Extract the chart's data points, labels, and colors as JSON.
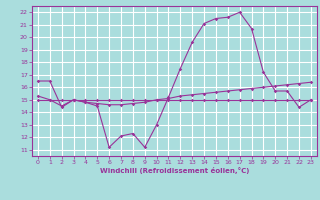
{
  "xlabel": "Windchill (Refroidissement éolien,°C)",
  "bg_color": "#aadddd",
  "grid_color": "#ffffff",
  "line_color": "#993399",
  "x_ticks": [
    0,
    1,
    2,
    3,
    4,
    5,
    6,
    7,
    8,
    9,
    10,
    11,
    12,
    13,
    14,
    15,
    16,
    17,
    18,
    19,
    20,
    21,
    22,
    23
  ],
  "y_ticks": [
    11,
    12,
    13,
    14,
    15,
    16,
    17,
    18,
    19,
    20,
    21,
    22
  ],
  "xlim": [
    -0.5,
    23.5
  ],
  "ylim": [
    10.5,
    22.5
  ],
  "line1": {
    "x": [
      0,
      1,
      2,
      3,
      4,
      5,
      6,
      7,
      8,
      9,
      10,
      11,
      12,
      13,
      14,
      15,
      16,
      17,
      18,
      19,
      20,
      21,
      22,
      23
    ],
    "y": [
      16.5,
      16.5,
      14.4,
      15.0,
      14.8,
      14.5,
      11.2,
      12.1,
      12.3,
      11.2,
      13.0,
      15.2,
      17.5,
      19.6,
      21.1,
      21.5,
      21.6,
      22.0,
      20.7,
      17.2,
      15.7,
      15.7,
      14.4,
      15.0
    ]
  },
  "line2": {
    "x": [
      0,
      1,
      2,
      3,
      4,
      5,
      6,
      7,
      8,
      9,
      10,
      11,
      12,
      13,
      14,
      15,
      16,
      17,
      18,
      19,
      20,
      21,
      22,
      23
    ],
    "y": [
      15.3,
      15.0,
      14.5,
      15.0,
      14.8,
      14.7,
      14.6,
      14.6,
      14.7,
      14.8,
      15.0,
      15.1,
      15.3,
      15.4,
      15.5,
      15.6,
      15.7,
      15.8,
      15.9,
      16.0,
      16.1,
      16.2,
      16.3,
      16.4
    ]
  },
  "line3": {
    "x": [
      0,
      1,
      2,
      3,
      4,
      5,
      6,
      7,
      8,
      9,
      10,
      11,
      12,
      13,
      14,
      15,
      16,
      17,
      18,
      19,
      20,
      21,
      22,
      23
    ],
    "y": [
      15.0,
      15.0,
      15.0,
      15.0,
      15.0,
      15.0,
      15.0,
      15.0,
      15.0,
      15.0,
      15.0,
      15.0,
      15.0,
      15.0,
      15.0,
      15.0,
      15.0,
      15.0,
      15.0,
      15.0,
      15.0,
      15.0,
      15.0,
      15.0
    ]
  }
}
